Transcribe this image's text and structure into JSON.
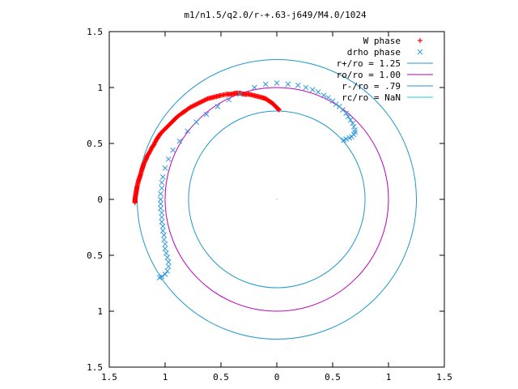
{
  "chart_data": {
    "type": "scatter",
    "title": "m1/n1.5/q2.0/r-+.63-j649/M4.0/1024",
    "xlim": [
      -1.5,
      1.5
    ],
    "ylim": [
      -1.5,
      1.5
    ],
    "xticks": [
      -1.5,
      -1,
      -0.5,
      0,
      0.5,
      1,
      1.5
    ],
    "xtick_labels": [
      "1.5",
      "1",
      "0.5",
      "0",
      "0.5",
      "1",
      "1.5"
    ],
    "yticks": [
      1.5,
      1,
      0.5,
      0,
      -0.5,
      -1,
      -1.5
    ],
    "ytick_labels": [
      "1.5",
      "1",
      "0.5",
      "0",
      "0.5",
      "1",
      "1.5"
    ],
    "grid": false,
    "legend_position": "top-right",
    "legend": [
      {
        "label": "W phase",
        "marker": "+",
        "color": "#ff0000"
      },
      {
        "label": "drho phase",
        "marker": "x",
        "color": "#3399dd"
      },
      {
        "label": "r+/ro = 1.25",
        "line": true,
        "color": "#2299cc"
      },
      {
        "label": "ro/ro = 1.00",
        "line": true,
        "color": "#bb00bb"
      },
      {
        "label": "r-/ro = .79",
        "line": true,
        "color": "#2299cc"
      },
      {
        "label": "rc/ro = NaN",
        "line": true,
        "color": "#22ccdd"
      }
    ],
    "circles": [
      {
        "name": "r+/ro = 1.25",
        "radius": 1.25,
        "color": "#2299cc"
      },
      {
        "name": "ro/ro = 1.00",
        "radius": 1.0,
        "color": "#bb00bb"
      },
      {
        "name": "r-/ro = .79",
        "radius": 0.79,
        "color": "#2299cc"
      }
    ],
    "series": [
      {
        "name": "W phase",
        "marker": "+",
        "color": "#ff0000",
        "points": [
          [
            -1.27,
            -0.03
          ],
          [
            -1.27,
            0.0
          ],
          [
            -1.265,
            0.03
          ],
          [
            -1.26,
            0.06
          ],
          [
            -1.255,
            0.09
          ],
          [
            -1.25,
            0.12
          ],
          [
            -1.24,
            0.16
          ],
          [
            -1.23,
            0.19
          ],
          [
            -1.22,
            0.22
          ],
          [
            -1.21,
            0.26
          ],
          [
            -1.2,
            0.29
          ],
          [
            -1.19,
            0.32
          ],
          [
            -1.17,
            0.36
          ],
          [
            -1.16,
            0.39
          ],
          [
            -1.14,
            0.42
          ],
          [
            -1.12,
            0.46
          ],
          [
            -1.1,
            0.49
          ],
          [
            -1.08,
            0.53
          ],
          [
            -1.06,
            0.56
          ],
          [
            -1.04,
            0.59
          ],
          [
            -1.01,
            0.62
          ],
          [
            -0.98,
            0.65
          ],
          [
            -0.95,
            0.68
          ],
          [
            -0.92,
            0.71
          ],
          [
            -0.89,
            0.74
          ],
          [
            -0.85,
            0.77
          ],
          [
            -0.82,
            0.79
          ],
          [
            -0.78,
            0.82
          ],
          [
            -0.74,
            0.84
          ],
          [
            -0.7,
            0.86
          ],
          [
            -0.66,
            0.88
          ],
          [
            -0.62,
            0.9
          ],
          [
            -0.58,
            0.91
          ],
          [
            -0.54,
            0.92
          ],
          [
            -0.5,
            0.93
          ],
          [
            -0.45,
            0.94
          ],
          [
            -0.41,
            0.94
          ],
          [
            -0.37,
            0.95
          ],
          [
            -0.33,
            0.95
          ],
          [
            -0.29,
            0.94
          ],
          [
            -0.25,
            0.94
          ],
          [
            -0.21,
            0.93
          ],
          [
            -0.17,
            0.92
          ],
          [
            -0.13,
            0.91
          ],
          [
            -0.1,
            0.9
          ],
          [
            -0.07,
            0.88
          ],
          [
            -0.04,
            0.86
          ],
          [
            -0.02,
            0.84
          ],
          [
            0.0,
            0.82
          ],
          [
            0.01,
            0.81
          ],
          [
            0.02,
            0.8
          ]
        ]
      },
      {
        "name": "drho phase",
        "marker": "x",
        "color": "#3399dd",
        "points": [
          [
            -1.05,
            -0.7
          ],
          [
            -1.03,
            -0.69
          ],
          [
            -1.0,
            -0.67
          ],
          [
            -0.98,
            -0.64
          ],
          [
            -0.97,
            -0.6
          ],
          [
            -0.97,
            -0.56
          ],
          [
            -0.98,
            -0.52
          ],
          [
            -0.99,
            -0.48
          ],
          [
            -1.0,
            -0.44
          ],
          [
            -1.0,
            -0.4
          ],
          [
            -1.01,
            -0.36
          ],
          [
            -1.01,
            -0.32
          ],
          [
            -1.02,
            -0.28
          ],
          [
            -1.02,
            -0.24
          ],
          [
            -1.03,
            -0.2
          ],
          [
            -1.03,
            -0.16
          ],
          [
            -1.03,
            -0.12
          ],
          [
            -1.04,
            -0.08
          ],
          [
            -1.04,
            -0.04
          ],
          [
            -1.04,
            0.0
          ],
          [
            -1.04,
            0.05
          ],
          [
            -1.03,
            0.1
          ],
          [
            -1.03,
            0.15
          ],
          [
            -1.02,
            0.2
          ],
          [
            -1.0,
            0.28
          ],
          [
            -0.97,
            0.36
          ],
          [
            -0.93,
            0.44
          ],
          [
            -0.87,
            0.52
          ],
          [
            -0.8,
            0.61
          ],
          [
            -0.72,
            0.69
          ],
          [
            -0.63,
            0.76
          ],
          [
            -0.53,
            0.83
          ],
          [
            -0.43,
            0.89
          ],
          [
            -0.33,
            0.94
          ],
          [
            -0.2,
            1.0
          ],
          [
            -0.1,
            1.03
          ],
          [
            0.0,
            1.04
          ],
          [
            0.1,
            1.03
          ],
          [
            0.19,
            1.02
          ],
          [
            0.26,
            1.0
          ],
          [
            0.32,
            0.98
          ],
          [
            0.37,
            0.96
          ],
          [
            0.42,
            0.93
          ],
          [
            0.46,
            0.91
          ],
          [
            0.5,
            0.88
          ],
          [
            0.53,
            0.85
          ],
          [
            0.56,
            0.83
          ],
          [
            0.59,
            0.8
          ],
          [
            0.62,
            0.77
          ],
          [
            0.64,
            0.74
          ],
          [
            0.66,
            0.71
          ],
          [
            0.68,
            0.68
          ],
          [
            0.69,
            0.65
          ],
          [
            0.7,
            0.62
          ],
          [
            0.7,
            0.6
          ],
          [
            0.69,
            0.58
          ],
          [
            0.67,
            0.56
          ],
          [
            0.65,
            0.55
          ],
          [
            0.62,
            0.54
          ],
          [
            0.6,
            0.53
          ]
        ]
      }
    ]
  }
}
